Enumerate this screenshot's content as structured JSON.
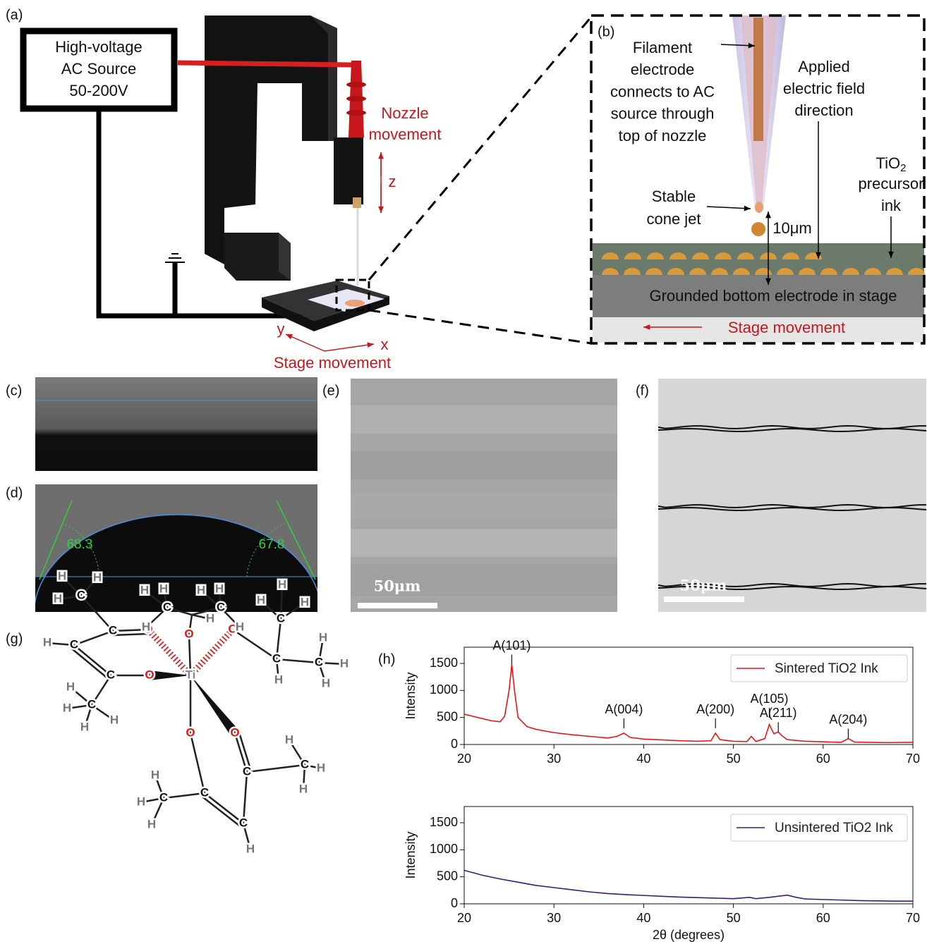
{
  "panels": {
    "a": {
      "label": "(a)",
      "source": [
        "High-voltage",
        "AC Source",
        "50-200V"
      ],
      "nozzle_movement": [
        "Nozzle",
        "movement"
      ],
      "z_axis": "z",
      "y_axis": "y",
      "x_axis": "x",
      "stage_movement": "Stage movement"
    },
    "b": {
      "label": "(b)",
      "filament": [
        "Filament",
        "electrode",
        "connects to AC",
        "source through",
        "top of nozzle"
      ],
      "field": [
        "Applied",
        "electric field",
        "direction"
      ],
      "ink_formula": {
        "main": "TiO",
        "sub": "2"
      },
      "ink": [
        "precursor",
        "ink"
      ],
      "cone_jet": [
        "Stable",
        "cone jet"
      ],
      "gap": "10μm",
      "electrode": "Grounded bottom electrode in stage",
      "stage_movement": "Stage movement"
    },
    "c": {
      "label": "(c)"
    },
    "d": {
      "label": "(d)",
      "contact_angles": [
        68.3,
        67.8
      ]
    },
    "e": {
      "label": "(e)",
      "scale_bar": "50μm"
    },
    "f": {
      "label": "(f)",
      "scale_bar": "50μm"
    },
    "g": {
      "label": "(g)",
      "atoms": [
        "Ti",
        "O",
        "O",
        "O",
        "O",
        "O",
        "O",
        "C",
        "C",
        "C",
        "C",
        "C",
        "C",
        "C",
        "C",
        "C",
        "C",
        "C",
        "C",
        "C",
        "C",
        "C",
        "H",
        "H",
        "H",
        "H",
        "H",
        "H",
        "H",
        "H",
        "H",
        "H",
        "H",
        "H",
        "H",
        "H",
        "H",
        "H",
        "H",
        "H",
        "H",
        "H",
        "H",
        "H",
        "H",
        "H",
        "H",
        "H",
        "H",
        "H",
        "H"
      ]
    },
    "h": {
      "label": "(h)"
    }
  },
  "chart_data": [
    {
      "type": "line",
      "x": [
        20,
        21,
        22,
        23,
        24,
        24.5,
        25,
        25.3,
        25.6,
        26,
        27,
        28,
        30,
        32,
        34,
        36,
        37,
        37.8,
        38.5,
        40,
        42,
        44,
        46,
        47.5,
        48,
        48.5,
        50,
        51.5,
        52,
        52.5,
        53.5,
        54,
        54.5,
        55,
        55.5,
        56,
        58,
        60,
        62,
        62.8,
        63.5,
        65,
        67,
        70
      ],
      "series": [
        {
          "name": "Sintered TiO2 Ink",
          "color": "#e8141a",
          "values": [
            560,
            520,
            480,
            440,
            420,
            520,
            1000,
            1480,
            1000,
            500,
            330,
            280,
            220,
            180,
            150,
            120,
            150,
            210,
            130,
            100,
            85,
            70,
            60,
            70,
            210,
            90,
            60,
            55,
            150,
            55,
            110,
            370,
            200,
            230,
            150,
            90,
            60,
            50,
            40,
            110,
            45,
            40,
            35,
            40
          ]
        }
      ],
      "xlim": [
        20,
        70
      ],
      "ylim": [
        0,
        1800
      ],
      "xticks": [
        20,
        30,
        40,
        50,
        60,
        70
      ],
      "yticks": [
        0,
        500,
        1000,
        1500
      ],
      "y_label": "Intensity",
      "legend": "upper right",
      "annotations": [
        {
          "text": "A(101)",
          "x": 25.3,
          "y": 1480
        },
        {
          "text": "A(004)",
          "x": 37.8,
          "y": 300
        },
        {
          "text": "A(200)",
          "x": 48,
          "y": 300
        },
        {
          "text": "A(105)",
          "x": 54,
          "y": 495
        },
        {
          "text": "A(211)",
          "x": 55,
          "y": 230
        },
        {
          "text": "A(204)",
          "x": 62.8,
          "y": 110
        }
      ]
    },
    {
      "type": "line",
      "x": [
        20,
        22,
        24,
        26,
        28,
        30,
        32,
        34,
        36,
        38,
        40,
        42,
        44,
        46,
        48,
        50,
        51.8,
        52.5,
        54,
        56,
        57,
        58,
        60,
        62,
        64,
        66,
        68,
        70
      ],
      "series": [
        {
          "name": "Unsintered TiO2 Ink",
          "color": "#3b1a7a",
          "values": [
            620,
            530,
            460,
            400,
            340,
            300,
            260,
            220,
            190,
            170,
            155,
            140,
            125,
            115,
            105,
            95,
            120,
            95,
            120,
            160,
            120,
            90,
            80,
            70,
            60,
            55,
            50,
            50
          ]
        }
      ],
      "xlim": [
        20,
        70
      ],
      "ylim": [
        0,
        1800
      ],
      "xticks": [
        20,
        30,
        40,
        50,
        60,
        70
      ],
      "yticks": [
        0,
        500,
        1000,
        1500
      ],
      "y_label": "Intensity",
      "x_label": "2θ (degrees)",
      "legend": "upper right"
    }
  ]
}
